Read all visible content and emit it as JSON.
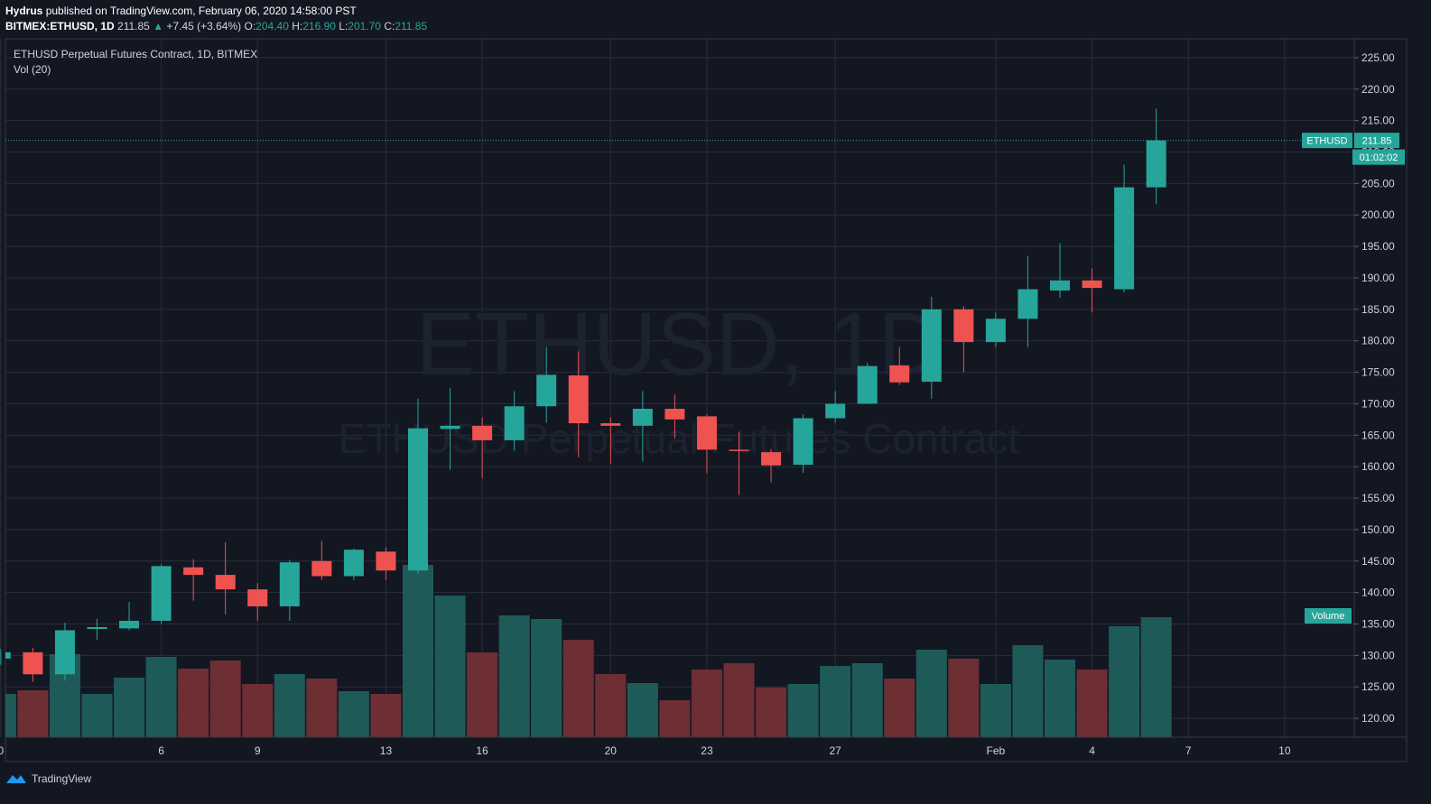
{
  "header": {
    "author": "Hydrus",
    "published_text": "published on TradingView.com, February 06, 2020 14:58:00 PST",
    "symbol": "BITMEX:ETHUSD, 1D",
    "last": "211.85",
    "change": "+7.45 (+3.64%)",
    "open_label": "O:",
    "open": "204.40",
    "high_label": "H:",
    "high": "216.90",
    "low_label": "L:",
    "low": "201.70",
    "close_label": "C:",
    "close": "211.85"
  },
  "legend": {
    "title": "ETHUSD Perpetual Futures Contract, 1D, BITMEX",
    "volume": "Vol (20)"
  },
  "watermark": {
    "main": "ETHUSD, 1D",
    "sub": "ETHUSD Perpetual Futures Contract"
  },
  "price_tags": {
    "symbol": "ETHUSD",
    "price": "211.85",
    "countdown": "01:02:02",
    "volume": "Volume"
  },
  "footer": {
    "brand": "TradingView"
  },
  "colors": {
    "up": "#26a69a",
    "down": "#ef5350",
    "vol_up": "#1e5b58",
    "vol_down": "#6d2e34",
    "grid": "#2a2e39",
    "bg": "#131722"
  },
  "chart_data": {
    "type": "candlestick",
    "title": "ETHUSD Perpetual Futures Contract, 1D, BITMEX",
    "y_range": [
      117,
      228
    ],
    "y_ticks": [
      "225.00",
      "220.00",
      "215.00",
      "210.00",
      "205.00",
      "200.00",
      "195.00",
      "190.00",
      "185.00",
      "180.00",
      "175.00",
      "170.00",
      "165.00",
      "160.00",
      "155.00",
      "150.00",
      "145.00",
      "140.00",
      "135.00",
      "130.00",
      "125.00",
      "120.00"
    ],
    "x_ticks": [
      {
        "label": "0",
        "day": -1
      },
      {
        "label": "6",
        "day": 4
      },
      {
        "label": "9",
        "day": 7
      },
      {
        "label": "13",
        "day": 11
      },
      {
        "label": "16",
        "day": 14
      },
      {
        "label": "20",
        "day": 18
      },
      {
        "label": "23",
        "day": 21
      },
      {
        "label": "27",
        "day": 25
      },
      {
        "label": "Feb",
        "day": 30
      },
      {
        "label": "4",
        "day": 33
      },
      {
        "label": "7",
        "day": 36
      },
      {
        "label": "10",
        "day": 39
      }
    ],
    "candles": [
      {
        "day": -1,
        "o": 129.5,
        "h": 131.0,
        "l": 128.5,
        "c": 130.5
      },
      {
        "day": 0,
        "o": 130.5,
        "h": 131.2,
        "l": 125.8,
        "c": 127.0
      },
      {
        "day": 1,
        "o": 127.0,
        "h": 135.2,
        "l": 126.0,
        "c": 134.0
      },
      {
        "day": 2,
        "o": 134.2,
        "h": 135.8,
        "l": 132.5,
        "c": 134.5
      },
      {
        "day": 3,
        "o": 134.3,
        "h": 138.5,
        "l": 134.0,
        "c": 135.5
      },
      {
        "day": 4,
        "o": 135.5,
        "h": 144.5,
        "l": 135.0,
        "c": 144.2
      },
      {
        "day": 5,
        "o": 144.0,
        "h": 145.3,
        "l": 138.7,
        "c": 142.8
      },
      {
        "day": 6,
        "o": 142.8,
        "h": 148.0,
        "l": 136.5,
        "c": 140.5
      },
      {
        "day": 7,
        "o": 140.5,
        "h": 141.5,
        "l": 135.5,
        "c": 137.8
      },
      {
        "day": 8,
        "o": 137.8,
        "h": 145.2,
        "l": 135.5,
        "c": 144.8
      },
      {
        "day": 9,
        "o": 145.0,
        "h": 148.2,
        "l": 142.0,
        "c": 142.6
      },
      {
        "day": 10,
        "o": 142.6,
        "h": 147.0,
        "l": 142.0,
        "c": 146.8
      },
      {
        "day": 11,
        "o": 146.5,
        "h": 147.2,
        "l": 142.0,
        "c": 143.5
      },
      {
        "day": 12,
        "o": 143.5,
        "h": 170.8,
        "l": 143.0,
        "c": 166.1
      },
      {
        "day": 13,
        "o": 166.0,
        "h": 172.5,
        "l": 159.5,
        "c": 166.5
      },
      {
        "day": 14,
        "o": 166.5,
        "h": 167.8,
        "l": 158.2,
        "c": 164.2
      },
      {
        "day": 15,
        "o": 164.2,
        "h": 172.0,
        "l": 162.5,
        "c": 169.6
      },
      {
        "day": 16,
        "o": 169.6,
        "h": 179.0,
        "l": 167.0,
        "c": 174.6
      },
      {
        "day": 17,
        "o": 174.5,
        "h": 178.3,
        "l": 161.5,
        "c": 166.9
      },
      {
        "day": 18,
        "o": 166.9,
        "h": 167.8,
        "l": 160.5,
        "c": 166.5
      },
      {
        "day": 19,
        "o": 166.5,
        "h": 172.0,
        "l": 160.8,
        "c": 169.2
      },
      {
        "day": 20,
        "o": 169.2,
        "h": 171.5,
        "l": 164.5,
        "c": 167.5
      },
      {
        "day": 21,
        "o": 168.0,
        "h": 168.3,
        "l": 159.0,
        "c": 162.7
      },
      {
        "day": 22,
        "o": 162.7,
        "h": 165.5,
        "l": 155.5,
        "c": 162.5
      },
      {
        "day": 23,
        "o": 162.3,
        "h": 162.8,
        "l": 157.5,
        "c": 160.2
      },
      {
        "day": 24,
        "o": 160.3,
        "h": 168.3,
        "l": 159.0,
        "c": 167.7
      },
      {
        "day": 25,
        "o": 167.7,
        "h": 172.0,
        "l": 167.0,
        "c": 170.0
      },
      {
        "day": 26,
        "o": 170.0,
        "h": 176.5,
        "l": 170.0,
        "c": 176.0
      },
      {
        "day": 27,
        "o": 176.1,
        "h": 179.0,
        "l": 173.0,
        "c": 173.4
      },
      {
        "day": 28,
        "o": 173.5,
        "h": 187.0,
        "l": 170.8,
        "c": 185.0
      },
      {
        "day": 29,
        "o": 185.0,
        "h": 185.5,
        "l": 175.0,
        "c": 179.8
      },
      {
        "day": 30,
        "o": 179.8,
        "h": 184.5,
        "l": 179.0,
        "c": 183.5
      },
      {
        "day": 31,
        "o": 183.5,
        "h": 193.5,
        "l": 179.0,
        "c": 188.2
      },
      {
        "day": 32,
        "o": 188.0,
        "h": 195.5,
        "l": 186.8,
        "c": 189.6
      },
      {
        "day": 33,
        "o": 189.6,
        "h": 191.5,
        "l": 184.5,
        "c": 188.4
      },
      {
        "day": 34,
        "o": 188.2,
        "h": 208.0,
        "l": 187.7,
        "c": 204.4
      },
      {
        "day": 35,
        "o": 204.4,
        "h": 216.9,
        "l": 201.7,
        "c": 211.85
      }
    ],
    "volumes": [
      {
        "day": -1,
        "v": 48,
        "up": true
      },
      {
        "day": 0,
        "v": 52,
        "up": false
      },
      {
        "day": 1,
        "v": 92,
        "up": true
      },
      {
        "day": 2,
        "v": 48,
        "up": true
      },
      {
        "day": 3,
        "v": 66,
        "up": true
      },
      {
        "day": 4,
        "v": 89,
        "up": true
      },
      {
        "day": 5,
        "v": 76,
        "up": false
      },
      {
        "day": 6,
        "v": 85,
        "up": false
      },
      {
        "day": 7,
        "v": 59,
        "up": false
      },
      {
        "day": 8,
        "v": 70,
        "up": true
      },
      {
        "day": 9,
        "v": 65,
        "up": false
      },
      {
        "day": 10,
        "v": 51,
        "up": true
      },
      {
        "day": 11,
        "v": 48,
        "up": false
      },
      {
        "day": 12,
        "v": 191,
        "up": true
      },
      {
        "day": 13,
        "v": 157,
        "up": true
      },
      {
        "day": 14,
        "v": 94,
        "up": false
      },
      {
        "day": 15,
        "v": 135,
        "up": true
      },
      {
        "day": 16,
        "v": 131,
        "up": true
      },
      {
        "day": 17,
        "v": 108,
        "up": false
      },
      {
        "day": 18,
        "v": 70,
        "up": false
      },
      {
        "day": 19,
        "v": 60,
        "up": true
      },
      {
        "day": 20,
        "v": 41,
        "up": false
      },
      {
        "day": 21,
        "v": 75,
        "up": false
      },
      {
        "day": 22,
        "v": 82,
        "up": false
      },
      {
        "day": 23,
        "v": 55,
        "up": false
      },
      {
        "day": 24,
        "v": 59,
        "up": true
      },
      {
        "day": 25,
        "v": 79,
        "up": true
      },
      {
        "day": 26,
        "v": 82,
        "up": true
      },
      {
        "day": 27,
        "v": 65,
        "up": false
      },
      {
        "day": 28,
        "v": 97,
        "up": true
      },
      {
        "day": 29,
        "v": 87,
        "up": false
      },
      {
        "day": 30,
        "v": 59,
        "up": true
      },
      {
        "day": 31,
        "v": 102,
        "up": true
      },
      {
        "day": 32,
        "v": 86,
        "up": true
      },
      {
        "day": 33,
        "v": 75,
        "up": false
      },
      {
        "day": 34,
        "v": 123,
        "up": true
      },
      {
        "day": 35,
        "v": 133,
        "up": true
      }
    ]
  }
}
